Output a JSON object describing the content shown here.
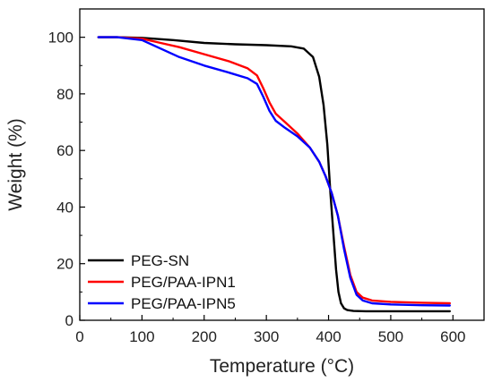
{
  "chart_data": {
    "type": "line",
    "title": "",
    "xlabel": "Temperature (°C)",
    "ylabel": "Weight (%)",
    "xlim": [
      0,
      650
    ],
    "ylim": [
      0,
      110
    ],
    "xticks": [
      0,
      100,
      200,
      300,
      400,
      500,
      600
    ],
    "yticks": [
      0,
      20,
      40,
      60,
      80,
      100
    ],
    "legend_position": "bottom-left",
    "grid": false,
    "series": [
      {
        "name": "PEG-SN",
        "color": "#000000",
        "x": [
          30,
          60,
          100,
          150,
          200,
          250,
          300,
          340,
          360,
          375,
          385,
          392,
          398,
          403,
          408,
          412,
          416,
          420,
          425,
          430,
          440,
          460,
          500,
          550,
          595
        ],
        "y": [
          100,
          100,
          99.8,
          99,
          98,
          97.5,
          97.2,
          96.8,
          96,
          93,
          86,
          76,
          62,
          45,
          30,
          18,
          10,
          6,
          4.2,
          3.6,
          3.3,
          3.2,
          3.2,
          3.2,
          3.2
        ]
      },
      {
        "name": "PEG/PAA-IPN1",
        "color": "#ff0000",
        "x": [
          30,
          60,
          100,
          130,
          160,
          200,
          240,
          270,
          285,
          295,
          305,
          315,
          330,
          350,
          370,
          385,
          395,
          405,
          415,
          425,
          435,
          445,
          455,
          470,
          500,
          550,
          595
        ],
        "y": [
          100,
          100,
          99.5,
          98,
          96.5,
          94,
          91.5,
          89,
          86.5,
          82,
          77,
          73,
          70,
          66,
          61,
          56,
          51,
          45,
          37,
          26,
          16,
          10,
          8,
          7,
          6.5,
          6.2,
          6.0
        ]
      },
      {
        "name": "PEG/PAA-IPN5",
        "color": "#0000ff",
        "x": [
          30,
          60,
          100,
          130,
          160,
          200,
          240,
          270,
          285,
          295,
          305,
          315,
          330,
          350,
          370,
          385,
          395,
          405,
          415,
          425,
          435,
          445,
          455,
          470,
          500,
          550,
          595
        ],
        "y": [
          100,
          100,
          99,
          96,
          93,
          90,
          87.5,
          85.5,
          83.5,
          79,
          74,
          70.5,
          68,
          65,
          61,
          56,
          51,
          45,
          37,
          25,
          15,
          9,
          7,
          6,
          5.6,
          5.3,
          5.2
        ]
      }
    ]
  }
}
